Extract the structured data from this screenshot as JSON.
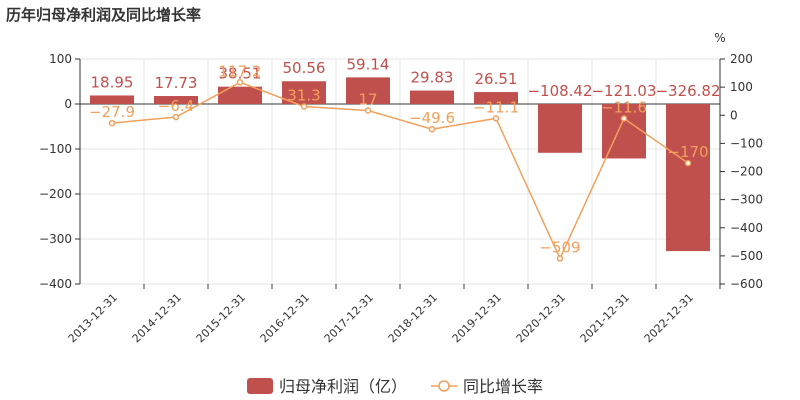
{
  "chart_data": {
    "type": "bar",
    "title": "历年归母净利润及同比增长率",
    "categories": [
      "2013-12-31",
      "2014-12-31",
      "2015-12-31",
      "2016-12-31",
      "2017-12-31",
      "2018-12-31",
      "2019-12-31",
      "2020-12-31",
      "2021-12-31",
      "2022-12-31"
    ],
    "y_left": {
      "ticks": [
        "100",
        "0",
        "−100",
        "−200",
        "−300",
        "−400"
      ],
      "min": -400,
      "max": 100
    },
    "y_right": {
      "unit": "%",
      "ticks": [
        "200",
        "100",
        "0",
        "−100",
        "−200",
        "−300",
        "−400",
        "−500",
        "−600"
      ],
      "min": -600,
      "max": 200
    },
    "series": [
      {
        "name": "归母净利润（亿）",
        "type": "bar",
        "axis": "left",
        "color": "#c0504d",
        "values": [
          18.95,
          17.73,
          38.51,
          50.56,
          59.14,
          29.83,
          26.51,
          -108.42,
          -121.03,
          -326.82
        ],
        "labels": [
          "18.95",
          "17.73",
          "38.51",
          "50.56",
          "59.14",
          "29.83",
          "26.51",
          "−108.42",
          "−121.03",
          "−326.82"
        ]
      },
      {
        "name": "同比增长率",
        "type": "line",
        "axis": "right",
        "color": "#f2a05c",
        "values": [
          -27.9,
          -6.4,
          117.2,
          31.3,
          17,
          -49.6,
          -11.1,
          -509,
          -11.6,
          -170
        ],
        "labels": [
          "−27.9",
          "−6.4",
          "117.2",
          "31.3",
          "17",
          "−49.6",
          "−11.1",
          "−509",
          "−11.6",
          "−170"
        ]
      }
    ],
    "legend": {
      "position": "bottom"
    }
  }
}
